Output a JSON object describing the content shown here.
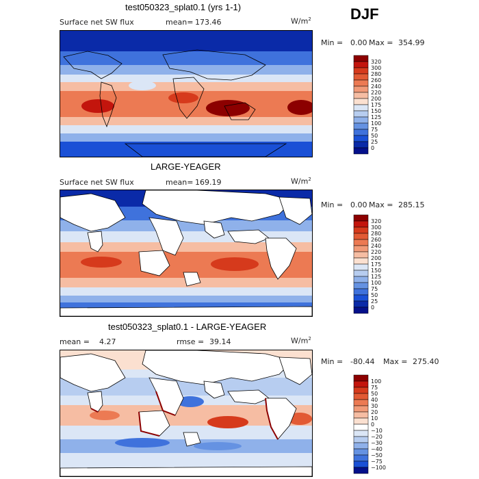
{
  "season_label": "DJF",
  "units_base": "W/m",
  "units_exp": "2",
  "chart_data": [
    {
      "type": "heatmap",
      "title": "test050323_splat0.1 (yrs 1-1)",
      "field": "Surface net SW flux",
      "stat_label": "mean=",
      "stat_value": "173.46",
      "min_label": "Min =",
      "min_value": "0.00",
      "max_label": "Max =",
      "max_value": "354.99",
      "levels": [
        "320",
        "300",
        "280",
        "260",
        "240",
        "220",
        "200",
        "175",
        "150",
        "125",
        "100",
        "75",
        "50",
        "25",
        "0"
      ],
      "colors": [
        "#8c0000",
        "#c3150d",
        "#d63a1c",
        "#e25a34",
        "#ec7a53",
        "#f19a78",
        "#f6bda3",
        "#fbe0d0",
        "#dbe6f6",
        "#b7cdf0",
        "#8fb1ea",
        "#6592e2",
        "#3f72dc",
        "#1a50d6",
        "#0a2aa8",
        "#04108a"
      ]
    },
    {
      "type": "heatmap",
      "title": "LARGE-YEAGER",
      "field": "Surface net SW flux",
      "stat_label": "mean=",
      "stat_value": "169.19",
      "min_label": "Min =",
      "min_value": "0.00",
      "max_label": "Max =",
      "max_value": "285.15",
      "levels": [
        "320",
        "300",
        "280",
        "260",
        "240",
        "220",
        "200",
        "175",
        "150",
        "125",
        "100",
        "75",
        "50",
        "25",
        "0"
      ],
      "colors": [
        "#8c0000",
        "#c3150d",
        "#d63a1c",
        "#e25a34",
        "#ec7a53",
        "#f19a78",
        "#f6bda3",
        "#fbe0d0",
        "#dbe6f6",
        "#b7cdf0",
        "#8fb1ea",
        "#6592e2",
        "#3f72dc",
        "#1a50d6",
        "#0a2aa8",
        "#04108a"
      ]
    },
    {
      "type": "heatmap",
      "title": "test050323_splat0.1 - LARGE-YEAGER",
      "stat_label": "mean =",
      "stat_value": "4.27",
      "rmse_label": "rmse =",
      "rmse_value": "39.14",
      "min_label": "Min =",
      "min_value": "-80.44",
      "max_label": "Max =",
      "max_value": "275.40",
      "levels": [
        "100",
        "75",
        "50",
        "40",
        "30",
        "20",
        "10",
        "0",
        "−10",
        "−20",
        "−30",
        "−40",
        "−50",
        "−75",
        "−100"
      ],
      "colors": [
        "#8c0000",
        "#c3150d",
        "#d63a1c",
        "#e25a34",
        "#ec7a53",
        "#f19a78",
        "#f6bda3",
        "#fbe0d0",
        "#ffffff",
        "#dbe6f6",
        "#b7cdf0",
        "#8fb1ea",
        "#6592e2",
        "#3f72dc",
        "#1a50d6",
        "#04108a"
      ]
    }
  ]
}
